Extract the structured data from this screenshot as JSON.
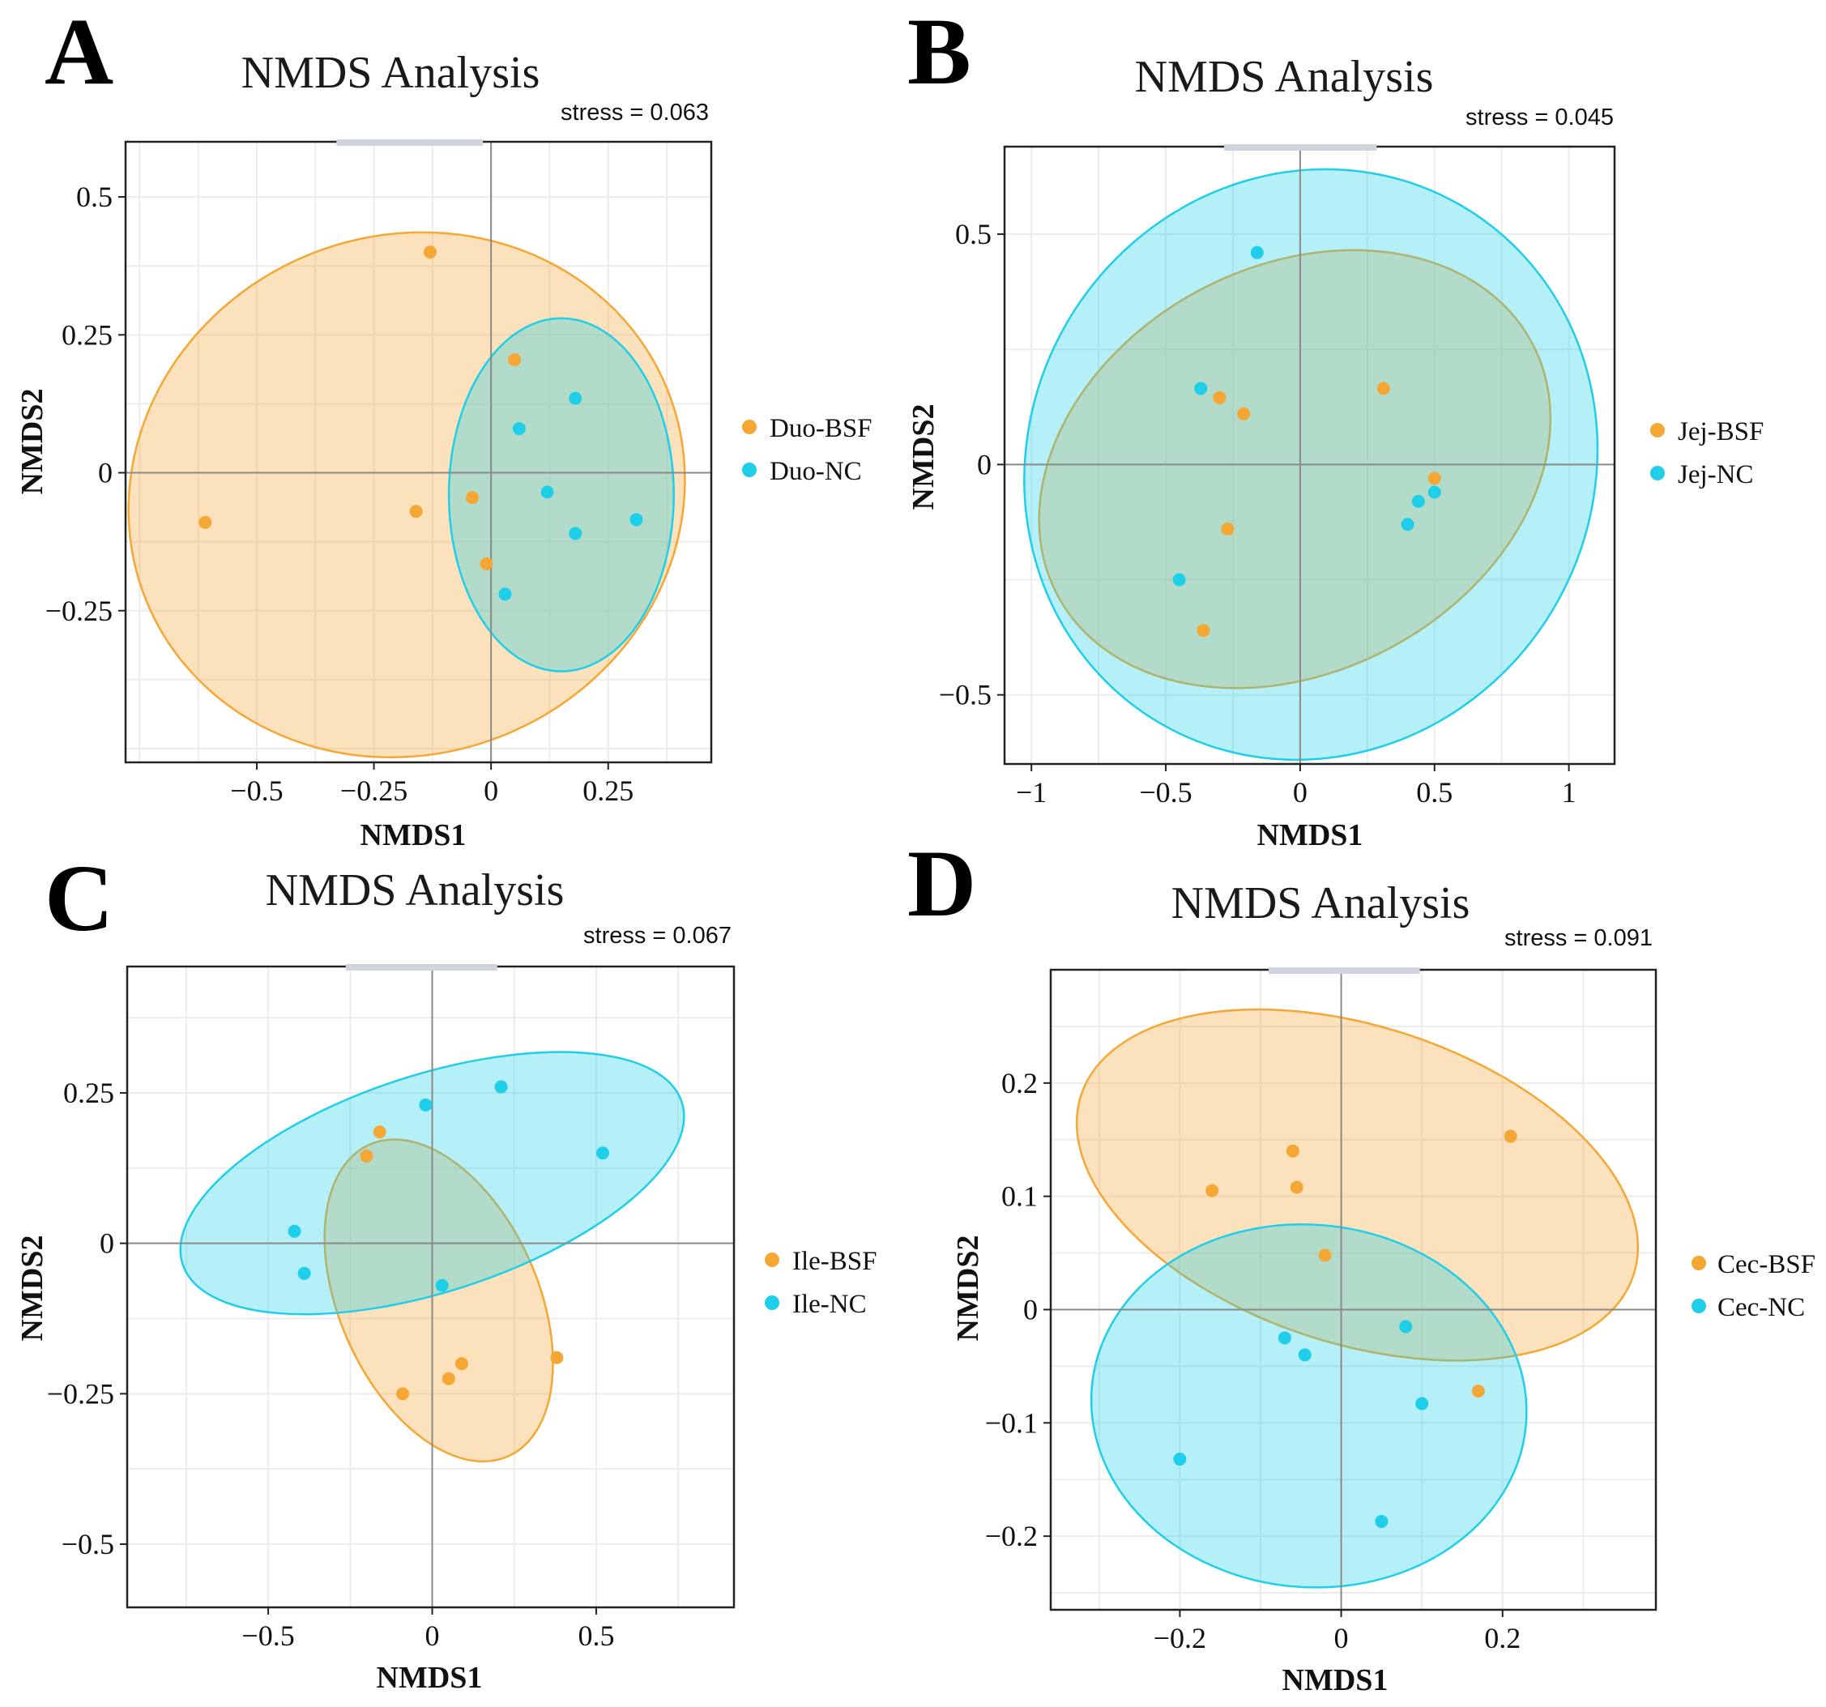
{
  "figure": {
    "colors": {
      "bsf": "#F5A735",
      "nc": "#1FCEE8"
    }
  },
  "chart_data": [
    {
      "type": "scatter",
      "panel": "A",
      "title": "NMDS Analysis",
      "stress": "stress = 0.063",
      "xlabel": "NMDS1",
      "ylabel": "NMDS2",
      "xlim": [
        -0.78,
        0.47
      ],
      "ylim": [
        -0.525,
        0.6
      ],
      "xticks": [
        -0.5,
        -0.25,
        0,
        0.25
      ],
      "xtick_labels": [
        "−0.5",
        "−0.25",
        "0",
        "0.25"
      ],
      "yticks": [
        -0.25,
        0,
        0.25,
        0.5
      ],
      "ytick_labels": [
        "−0.25",
        "0",
        "0.25",
        "0.5"
      ],
      "grid": true,
      "legend_position": "right",
      "series": [
        {
          "name": "Duo-BSF",
          "group": "bsf",
          "x": [
            -0.13,
            0.05,
            -0.61,
            -0.16,
            -0.04,
            -0.01
          ],
          "y": [
            0.4,
            0.205,
            -0.09,
            -0.07,
            -0.045,
            -0.165
          ],
          "ellipse": {
            "cx": -0.18,
            "cy": -0.04,
            "rx": 0.6,
            "ry": 0.47,
            "angle": 22
          }
        },
        {
          "name": "Duo-NC",
          "group": "nc",
          "x": [
            0.06,
            0.18,
            0.12,
            0.18,
            0.31,
            0.03
          ],
          "y": [
            0.08,
            0.135,
            -0.035,
            -0.11,
            -0.085,
            -0.22
          ],
          "ellipse": {
            "cx": 0.15,
            "cy": -0.04,
            "rx": 0.24,
            "ry": 0.32,
            "angle": 0
          }
        }
      ]
    },
    {
      "type": "scatter",
      "panel": "B",
      "title": "NMDS Analysis",
      "stress": "stress = 0.045",
      "xlabel": "NMDS1",
      "ylabel": "NMDS2",
      "xlim": [
        -1.1,
        1.17
      ],
      "ylim": [
        -0.65,
        0.69
      ],
      "xticks": [
        -1,
        -0.5,
        0,
        0.5,
        1
      ],
      "xtick_labels": [
        "−1",
        "−0.5",
        "0",
        "0.5",
        "1"
      ],
      "yticks": [
        -0.5,
        0,
        0.5
      ],
      "ytick_labels": [
        "−0.5",
        "0",
        "0.5"
      ],
      "grid": true,
      "legend_position": "right",
      "series": [
        {
          "name": "Jej-BSF",
          "group": "bsf",
          "x": [
            -0.3,
            -0.21,
            0.31,
            0.5,
            -0.27,
            -0.36
          ],
          "y": [
            0.145,
            0.11,
            0.165,
            -0.03,
            -0.14,
            -0.36
          ],
          "ellipse": {
            "cx": -0.02,
            "cy": -0.01,
            "rx": 1.0,
            "ry": 0.44,
            "angle": 28
          }
        },
        {
          "name": "Jej-NC",
          "group": "nc",
          "x": [
            -0.16,
            -0.37,
            0.5,
            0.44,
            0.4,
            -0.45
          ],
          "y": [
            0.46,
            0.165,
            -0.06,
            -0.08,
            -0.13,
            -0.25
          ],
          "ellipse": {
            "cx": 0.04,
            "cy": 0.0,
            "rx": 1.05,
            "ry": 0.65,
            "angle": -30
          }
        }
      ]
    },
    {
      "type": "scatter",
      "panel": "C",
      "title": "NMDS Analysis",
      "stress": "stress = 0.067",
      "xlabel": "NMDS1",
      "ylabel": "NMDS2",
      "xlim": [
        -0.93,
        0.92
      ],
      "ylim": [
        -0.605,
        0.46
      ],
      "xticks": [
        -0.5,
        0,
        0.5
      ],
      "xtick_labels": [
        "−0.5",
        "0",
        "0.5"
      ],
      "yticks": [
        -0.5,
        -0.25,
        0,
        0.25
      ],
      "ytick_labels": [
        "−0.5",
        "−0.25",
        "0",
        "0.25"
      ],
      "grid": true,
      "legend_position": "right",
      "series": [
        {
          "name": "Ile-BSF",
          "group": "bsf",
          "x": [
            -0.16,
            -0.2,
            0.38,
            0.09,
            0.05,
            -0.09
          ],
          "y": [
            0.185,
            0.145,
            -0.19,
            -0.2,
            -0.225,
            -0.25
          ],
          "ellipse": {
            "cx": 0.02,
            "cy": -0.095,
            "rx": 0.52,
            "ry": 0.165,
            "angle": -66
          }
        },
        {
          "name": "Ile-NC",
          "group": "nc",
          "x": [
            -0.02,
            0.21,
            0.52,
            -0.42,
            -0.39,
            0.03
          ],
          "y": [
            0.23,
            0.26,
            0.15,
            0.02,
            -0.05,
            -0.07
          ],
          "ellipse": {
            "cx": 0.0,
            "cy": 0.1,
            "rx": 0.8,
            "ry": 0.18,
            "angle": 18
          }
        }
      ]
    },
    {
      "type": "scatter",
      "panel": "D",
      "title": "NMDS Analysis",
      "stress": "stress = 0.091",
      "xlabel": "NMDS1",
      "ylabel": "NMDS2",
      "xlim": [
        -0.36,
        0.39
      ],
      "ylim": [
        -0.265,
        0.3
      ],
      "xticks": [
        -0.2,
        0,
        0.2
      ],
      "xtick_labels": [
        "−0.2",
        "0",
        "0.2"
      ],
      "yticks": [
        -0.2,
        -0.1,
        0,
        0.1,
        0.2
      ],
      "ytick_labels": [
        "−0.2",
        "−0.1",
        "0",
        "0.1",
        "0.2"
      ],
      "grid": true,
      "legend_position": "right",
      "series": [
        {
          "name": "Cec-BSF",
          "group": "bsf",
          "x": [
            0.21,
            -0.06,
            -0.16,
            -0.055,
            -0.02,
            0.17
          ],
          "y": [
            0.153,
            0.14,
            0.105,
            0.108,
            0.048,
            -0.072
          ],
          "ellipse": {
            "cx": 0.02,
            "cy": 0.11,
            "rx": 0.36,
            "ry": 0.14,
            "angle": -18
          }
        },
        {
          "name": "Cec-NC",
          "group": "nc",
          "x": [
            0.08,
            -0.07,
            -0.045,
            0.1,
            -0.2,
            0.05
          ],
          "y": [
            -0.015,
            -0.025,
            -0.04,
            -0.083,
            -0.132,
            -0.187
          ],
          "ellipse": {
            "cx": -0.04,
            "cy": -0.085,
            "rx": 0.27,
            "ry": 0.16,
            "angle": -5
          }
        }
      ]
    }
  ]
}
